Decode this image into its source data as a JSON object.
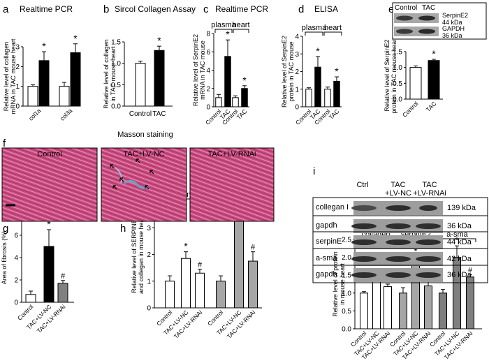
{
  "panels": {
    "a": {
      "letter": "a",
      "title": "Realtime PCR"
    },
    "b": {
      "letter": "b",
      "title": "Sircol Collagen Assay"
    },
    "c": {
      "letter": "c",
      "title": "Realtime PCR",
      "group_labels": [
        "plasma",
        "heart"
      ]
    },
    "d": {
      "letter": "d",
      "title": "ELISA",
      "group_labels": [
        "plasma",
        "heart"
      ]
    },
    "e": {
      "letter": "e",
      "blot_headers": [
        "Control",
        "TAC"
      ],
      "blot_rows": [
        {
          "protein": "SerpinE2",
          "size": "44 kDa"
        },
        {
          "protein": "GAPDH",
          "size": "36 kDa"
        }
      ]
    },
    "f": {
      "letter": "f",
      "title": "Masson staining",
      "labels": [
        "Control",
        "TAC+LV-NC",
        "TAC+LV-RNAi"
      ]
    },
    "g": {
      "letter": "g"
    },
    "h": {
      "letter": "h",
      "group_labels": [
        "serpinE2",
        "collagen"
      ]
    },
    "i": {
      "letter": "i",
      "blot_headers": [
        "Ctrl",
        "TAC\n+LV-NC",
        "TAC\n+LV-RNAi"
      ],
      "blot_rows": [
        {
          "protein": "collegan I",
          "size": "139 kDa"
        },
        {
          "protein": "gapdh",
          "size": "36 kDa"
        },
        {
          "protein": "serpinE",
          "size": "44 kDa"
        },
        {
          "protein": "a-sma",
          "size": "42 kDa"
        },
        {
          "protein": "gapdh",
          "size": "36 kDa"
        }
      ],
      "group_labels": [
        "collagen",
        "serpinE2",
        "a-sma"
      ]
    }
  },
  "legend": {
    "tac_bar_label": "TAC"
  },
  "chart_data": [
    {
      "panel": "a",
      "type": "bar",
      "ylabel": "Relative level of collagen\nmRNA in TAC mouse heart",
      "ylim": [
        0,
        3
      ],
      "yticks": [
        "0",
        "1",
        "2",
        "3"
      ],
      "categories": [
        "col1a",
        "col3a"
      ],
      "series": [
        {
          "name": "",
          "values": [
            1.0,
            1.0
          ],
          "errors": [
            0.08,
            0.2
          ],
          "color": "#ffffff"
        },
        {
          "name": "TAC",
          "values": [
            2.3,
            2.7
          ],
          "errors": [
            0.45,
            0.45
          ],
          "color": "#000000",
          "sig": [
            "*",
            "*"
          ]
        }
      ]
    },
    {
      "panel": "b",
      "type": "bar",
      "ylabel": "Relative level of collagen\nin TAC mouse heart",
      "ylim": [
        0,
        1.5
      ],
      "yticks": [
        "0.0",
        "0.5",
        "1.0",
        "1.5"
      ],
      "categories": [
        "Control",
        "TAC"
      ],
      "values": [
        1.0,
        1.3
      ],
      "errors": [
        0.05,
        0.1
      ],
      "colors": [
        "#ffffff",
        "#000000"
      ],
      "sig": [
        "",
        "*"
      ]
    },
    {
      "panel": "c",
      "type": "bar",
      "ylabel": "Relative level of SerpinE2\nmRNA in TAC mouse",
      "ylim": [
        0,
        8
      ],
      "yticks": [
        "0",
        "2",
        "4",
        "6",
        "8"
      ],
      "categories": [
        "Control",
        "TAC",
        "Control",
        "TAC"
      ],
      "values": [
        1.0,
        5.5,
        1.0,
        2.0
      ],
      "errors": [
        0.35,
        1.8,
        0.2,
        0.3
      ],
      "colors": [
        "#ffffff",
        "#000000",
        "#ffffff",
        "#000000"
      ],
      "sig": [
        "",
        "*",
        "",
        "*"
      ]
    },
    {
      "panel": "d",
      "type": "bar",
      "ylabel": "Relative level of SerpinE2\nprotein in TAC mouse",
      "ylim": [
        0,
        4
      ],
      "yticks": [
        "0",
        "1",
        "2",
        "3",
        "4"
      ],
      "categories": [
        "Control",
        "TAC",
        "Control",
        "TAC"
      ],
      "values": [
        1.0,
        2.25,
        1.0,
        1.45
      ],
      "errors": [
        0.08,
        0.6,
        0.12,
        0.25
      ],
      "colors": [
        "#ffffff",
        "#000000",
        "#ffffff",
        "#000000"
      ],
      "sig": [
        "",
        "*",
        "",
        "*"
      ]
    },
    {
      "panel": "e",
      "type": "bar",
      "ylabel": "Relative level of SerpinE2\nprotein in TAC mouse heart",
      "ylim": [
        0,
        1.5
      ],
      "yticks": [
        "0.0",
        "0.5",
        "1.0",
        "1.5"
      ],
      "categories": [
        "Control",
        "TAC"
      ],
      "values": [
        1.0,
        1.22
      ],
      "errors": [
        0.05,
        0.04
      ],
      "colors": [
        "#ffffff",
        "#000000"
      ],
      "sig": [
        "",
        "*"
      ]
    },
    {
      "panel": "g",
      "type": "bar",
      "ylabel": "Area of fibrosis (%)",
      "ylim": [
        0,
        8
      ],
      "yticks": [
        "0",
        "2",
        "4",
        "6",
        "8"
      ],
      "categories": [
        "Control",
        "TAC+LV-NC",
        "TAC+LV-RNAi"
      ],
      "values": [
        0.7,
        5.0,
        1.7
      ],
      "errors": [
        0.3,
        1.5,
        0.25
      ],
      "colors": [
        "#ffffff",
        "#000000",
        "#808080"
      ],
      "sig": [
        "",
        "*",
        "#"
      ]
    },
    {
      "panel": "h",
      "type": "bar",
      "ylabel": "Relative level of SERPINE2\nand collegan in mouse heart",
      "ylim": [
        0,
        4
      ],
      "yticks": [
        "0",
        "1",
        "2",
        "3",
        "4"
      ],
      "categories": [
        "Control",
        "TAC+LV-NC",
        "TAC+LV-RNAi",
        "Control",
        "TAC+LV-NC",
        "TAC+LV-RNAi"
      ],
      "values": [
        1.0,
        1.85,
        1.3,
        1.0,
        3.55,
        1.75
      ],
      "errors": [
        0.2,
        0.25,
        0.15,
        0.2,
        0.08,
        0.35
      ],
      "colors": [
        "#ffffff",
        "#ffffff",
        "#ffffff",
        "#a6a6a6",
        "#a6a6a6",
        "#a6a6a6"
      ],
      "sig": [
        "",
        "*",
        "#",
        "",
        "*",
        "#"
      ]
    },
    {
      "panel": "i",
      "type": "bar",
      "ylabel": "Relative level of protein\nin mouse heart",
      "ylim": [
        0,
        2.5
      ],
      "yticks": [
        "0.0",
        "0.5",
        "1.0",
        "1.5",
        "2.0",
        "2.5"
      ],
      "categories": [
        "Control",
        "TAC+LV-NC",
        "TAC+LV-RNAi",
        "Control",
        "TAC+LV-NC",
        "TAC+LV-RNAi",
        "Control",
        "TAC+LV-NC",
        "TAC+LV-RNAi"
      ],
      "values": [
        1.0,
        1.58,
        1.18,
        1.0,
        1.9,
        1.2,
        1.0,
        2.0,
        1.45
      ],
      "errors": [
        0.04,
        0.04,
        0.07,
        0.15,
        0.12,
        0.18,
        0.1,
        0.32,
        0.06
      ],
      "colors": [
        "#ffffff",
        "#ffffff",
        "#ffffff",
        "#a6a6a6",
        "#a6a6a6",
        "#a6a6a6",
        "#7f7f7f",
        "#7f7f7f",
        "#7f7f7f"
      ],
      "sig": [
        "",
        "*",
        "#",
        "",
        "*",
        "#",
        "",
        "*",
        "#"
      ]
    }
  ]
}
